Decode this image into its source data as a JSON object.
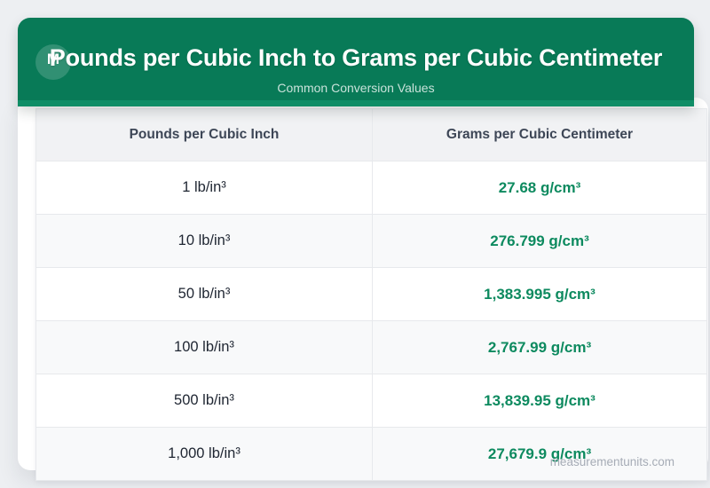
{
  "theme": {
    "banner_green": "#087a57",
    "banner_green_light": "#0f8d66",
    "value_green": "#0d8a5f",
    "page_bg": "#edeff2"
  },
  "header": {
    "badge_letter": "M",
    "title": "Pounds per Cubic Inch to Grams per Cubic Centimeter",
    "subtitle": "Common Conversion Values"
  },
  "table": {
    "columns": [
      "Pounds per Cubic Inch",
      "Grams per Cubic Centimeter"
    ],
    "rows": [
      {
        "from": "1 lb/in³",
        "to": "27.68 g/cm³"
      },
      {
        "from": "10 lb/in³",
        "to": "276.799 g/cm³"
      },
      {
        "from": "50 lb/in³",
        "to": "1,383.995 g/cm³"
      },
      {
        "from": "100 lb/in³",
        "to": "2,767.99 g/cm³"
      },
      {
        "from": "500 lb/in³",
        "to": "13,839.95 g/cm³"
      },
      {
        "from": "1,000 lb/in³",
        "to": "27,679.9 g/cm³"
      }
    ]
  },
  "watermark": "measurementunits.com",
  "chart_data": {
    "type": "table",
    "title": "Pounds per Cubic Inch to Grams per Cubic Centimeter",
    "subtitle": "Common Conversion Values",
    "columns": [
      "Pounds per Cubic Inch",
      "Grams per Cubic Centimeter"
    ],
    "rows": [
      [
        "1 lb/in³",
        "27.68 g/cm³"
      ],
      [
        "10 lb/in³",
        "276.799 g/cm³"
      ],
      [
        "50 lb/in³",
        "1,383.995 g/cm³"
      ],
      [
        "100 lb/in³",
        "2,767.99 g/cm³"
      ],
      [
        "500 lb/in³",
        "13,839.95 g/cm³"
      ],
      [
        "1,000 lb/in³",
        "27,679.9 g/cm³"
      ]
    ],
    "values_lb_per_in3": [
      1,
      10,
      50,
      100,
      500,
      1000
    ],
    "values_g_per_cm3": [
      27.68,
      276.799,
      1383.995,
      2767.99,
      13839.95,
      27679.9
    ]
  }
}
